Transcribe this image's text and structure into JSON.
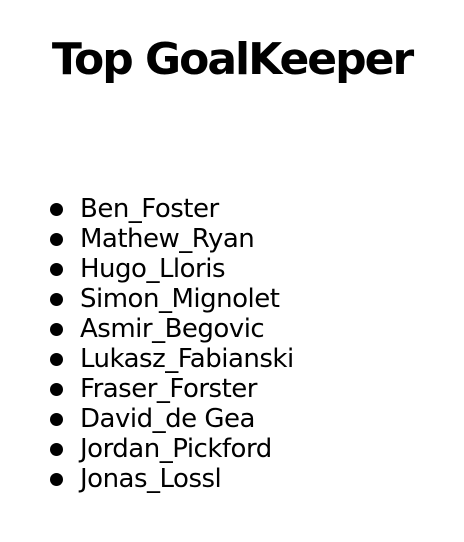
{
  "header": {
    "title": "Top GoalKeeper"
  },
  "goalkeepers": [
    "Ben_Foster",
    "Mathew_Ryan",
    "Hugo_Lloris",
    "Simon_Mignolet",
    "Asmir_Begovic",
    "Lukasz_Fabianski",
    "Fraser_Forster",
    "David_de Gea",
    "Jordan_Pickford",
    "Jonas_Lossl"
  ],
  "colors": {
    "text": "#000000",
    "background": "#ffffff"
  }
}
